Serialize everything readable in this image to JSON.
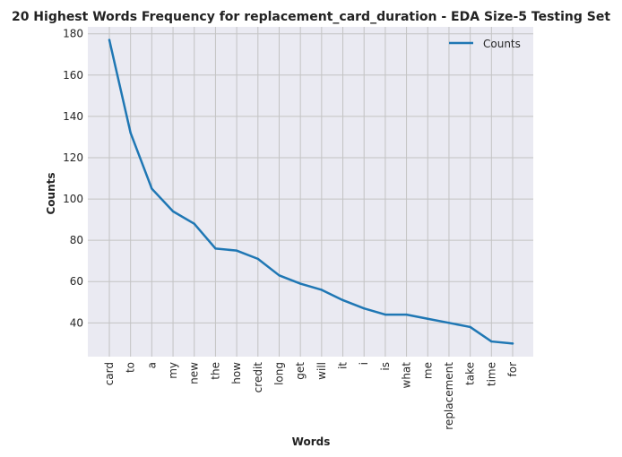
{
  "chart_data": {
    "type": "line",
    "title": "20 Highest Words Frequency for replacement_card_duration - EDA Size-5 Testing Set",
    "xlabel": "Words",
    "ylabel": "Counts",
    "categories": [
      "card",
      "to",
      "a",
      "my",
      "new",
      "the",
      "how",
      "credit",
      "long",
      "get",
      "will",
      "it",
      "i",
      "is",
      "what",
      "me",
      "replacement",
      "take",
      "time",
      "for"
    ],
    "series": [
      {
        "name": "Counts",
        "values": [
          177,
          132,
          105,
          94,
          88,
          76,
          75,
          71,
          63,
          59,
          56,
          51,
          47,
          44,
          44,
          42,
          40,
          38,
          31,
          30
        ]
      }
    ],
    "yticks": [
      40,
      60,
      80,
      100,
      120,
      140,
      160,
      180
    ],
    "ylim": [
      23.65,
      183.35
    ],
    "grid": true,
    "legend": "top-right",
    "colors": {
      "line": "#1f77b4",
      "plot_bg": "#eaeaf2",
      "grid": "#c3c3c3"
    }
  }
}
